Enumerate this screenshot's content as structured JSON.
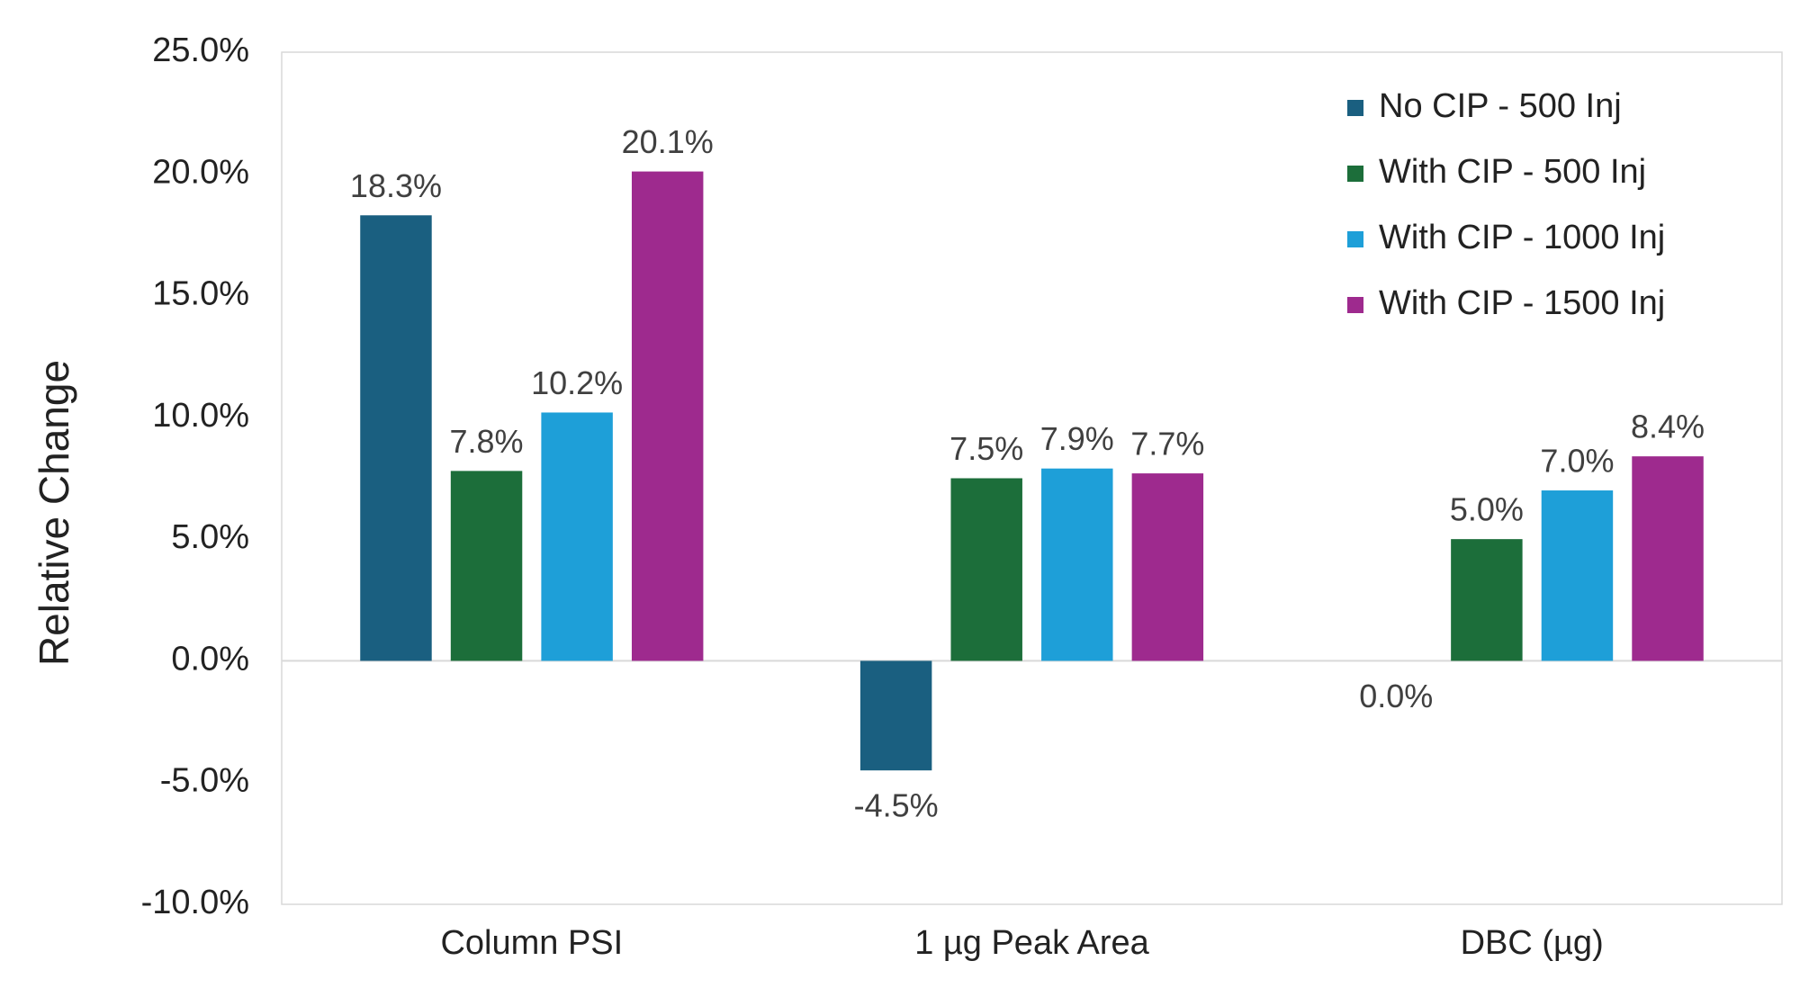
{
  "chart_data": {
    "type": "bar",
    "y_label": "Relative Change",
    "categories": [
      "Column PSI",
      "1 µg Peak Area",
      "DBC (µg)"
    ],
    "series": [
      {
        "name": "No CIP - 500 Inj",
        "color": "#1a5f80",
        "values": [
          18.3,
          -4.5,
          0.0
        ],
        "value_labels": [
          "18.3%",
          "-4.5%",
          "0.0%"
        ]
      },
      {
        "name": "With CIP - 500 Inj",
        "color": "#1c6e3a",
        "values": [
          7.8,
          7.5,
          5.0
        ],
        "value_labels": [
          "7.8%",
          "7.5%",
          "5.0%"
        ]
      },
      {
        "name": "With CIP - 1000 Inj",
        "color": "#1e9fd8",
        "values": [
          10.2,
          7.9,
          7.0
        ],
        "value_labels": [
          "10.2%",
          "7.9%",
          "7.0%"
        ]
      },
      {
        "name": "With CIP - 1500 Inj",
        "color": "#9e2a8e",
        "values": [
          20.1,
          7.7,
          8.4
        ],
        "value_labels": [
          "20.1%",
          "7.7%",
          "8.4%"
        ]
      }
    ],
    "ylim": [
      -10,
      25
    ],
    "yticks": [
      {
        "value": -10,
        "label": "-10.0%"
      },
      {
        "value": -5,
        "label": "-5.0%"
      },
      {
        "value": 0,
        "label": "0.0%"
      },
      {
        "value": 5,
        "label": "5.0%"
      },
      {
        "value": 10,
        "label": "10.0%"
      },
      {
        "value": 15,
        "label": "15.0%"
      },
      {
        "value": 20,
        "label": "20.0%"
      },
      {
        "value": 25,
        "label": "25.0%"
      }
    ],
    "grid": false,
    "legend": "top-right"
  }
}
